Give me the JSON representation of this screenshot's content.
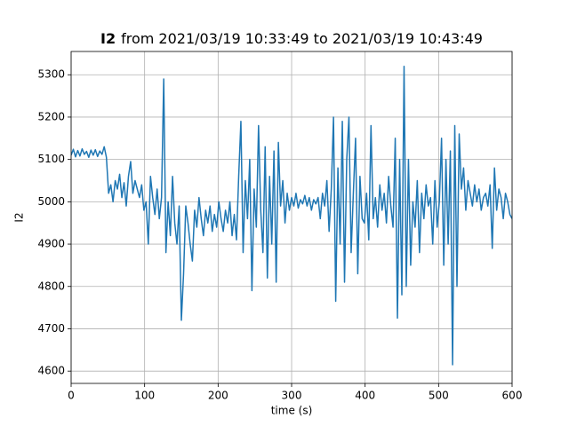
{
  "chart_data": {
    "type": "line",
    "title": [
      "I2",
      "from 2021/03/19 10:33:49 to 2021/03/19 10:43:49"
    ],
    "x_label": "time (s)",
    "y_label": "I2",
    "xlim": [
      0,
      600
    ],
    "ylim": [
      4571,
      5355
    ],
    "xticks": [
      0,
      100,
      200,
      300,
      400,
      500,
      600
    ],
    "yticks": [
      4600,
      4700,
      4800,
      4900,
      5000,
      5100,
      5200,
      5300
    ],
    "grid": true,
    "x": [
      0,
      3,
      6,
      9,
      12,
      15,
      18,
      21,
      24,
      27,
      30,
      33,
      36,
      39,
      42,
      45,
      48,
      51,
      54,
      57,
      60,
      63,
      66,
      69,
      72,
      75,
      78,
      81,
      84,
      87,
      90,
      93,
      96,
      99,
      102,
      105,
      108,
      111,
      114,
      117,
      120,
      123,
      126,
      129,
      132,
      135,
      138,
      141,
      144,
      147,
      150,
      153,
      156,
      159,
      162,
      165,
      168,
      171,
      174,
      177,
      180,
      183,
      186,
      189,
      192,
      195,
      198,
      201,
      204,
      207,
      210,
      213,
      216,
      219,
      222,
      225,
      228,
      231,
      234,
      237,
      240,
      243,
      246,
      249,
      252,
      255,
      258,
      261,
      264,
      267,
      270,
      273,
      276,
      279,
      282,
      285,
      288,
      291,
      294,
      297,
      300,
      303,
      306,
      309,
      312,
      315,
      318,
      321,
      324,
      327,
      330,
      333,
      336,
      339,
      342,
      345,
      348,
      351,
      354,
      357,
      360,
      363,
      366,
      369,
      372,
      375,
      378,
      381,
      384,
      387,
      390,
      393,
      396,
      399,
      402,
      405,
      408,
      411,
      414,
      417,
      420,
      423,
      426,
      429,
      432,
      435,
      438,
      441,
      444,
      447,
      450,
      453,
      456,
      459,
      462,
      465,
      468,
      471,
      474,
      477,
      480,
      483,
      486,
      489,
      492,
      495,
      498,
      501,
      504,
      507,
      510,
      513,
      516,
      519,
      522,
      525,
      528,
      531,
      534,
      537,
      540,
      543,
      546,
      549,
      552,
      555,
      558,
      561,
      564,
      567,
      570,
      573,
      576,
      579,
      582,
      585,
      588,
      591,
      594,
      597,
      600
    ],
    "series": [
      {
        "name": "I2",
        "color": "#1f77b4",
        "values": [
          5110,
          5124,
          5106,
          5121,
          5108,
          5125,
          5112,
          5119,
          5105,
          5122,
          5110,
          5123,
          5107,
          5120,
          5112,
          5130,
          5105,
          5020,
          5040,
          5000,
          5050,
          5030,
          5065,
          5010,
          5045,
          4990,
          5060,
          5095,
          5020,
          5050,
          5030,
          5010,
          5040,
          4980,
          5000,
          4900,
          5060,
          5010,
          4970,
          5030,
          4960,
          5010,
          5290,
          4880,
          5000,
          4920,
          5060,
          4950,
          4900,
          4990,
          4720,
          4830,
          4990,
          4950,
          4900,
          4860,
          4980,
          4940,
          5010,
          4960,
          4920,
          4980,
          4950,
          4990,
          4930,
          4970,
          4940,
          5000,
          4960,
          4930,
          4980,
          4950,
          5000,
          4920,
          4970,
          4910,
          5060,
          5190,
          4880,
          5050,
          4960,
          5100,
          4790,
          5030,
          4940,
          5180,
          4980,
          4880,
          5130,
          4820,
          5060,
          4900,
          5120,
          4810,
          5140,
          4990,
          5050,
          4950,
          5020,
          4980,
          5010,
          4990,
          5020,
          4985,
          5005,
          4995,
          5015,
          4990,
          5010,
          4980,
          5005,
          4995,
          5010,
          4960,
          5020,
          4990,
          5050,
          4930,
          5030,
          5200,
          4765,
          5080,
          4900,
          5190,
          4810,
          5100,
          5200,
          4880,
          5020,
          5150,
          4830,
          5060,
          4960,
          4950,
          5020,
          4910,
          5180,
          4960,
          5010,
          4940,
          5040,
          4980,
          5020,
          4950,
          5060,
          4990,
          4940,
          5150,
          4725,
          5100,
          4780,
          5320,
          4800,
          5100,
          4850,
          5000,
          4940,
          5050,
          4880,
          5020,
          4960,
          5040,
          4990,
          5010,
          4900,
          5050,
          4940,
          5000,
          5150,
          4850,
          5100,
          4900,
          5120,
          4615,
          5180,
          4800,
          5160,
          5030,
          5080,
          4980,
          5050,
          5020,
          4990,
          5040,
          5000,
          5030,
          4980,
          5010,
          5020,
          4990,
          5040,
          4890,
          5080,
          4980,
          5030,
          5010,
          4960,
          5020,
          5000,
          4970,
          4960
        ]
      }
    ]
  }
}
